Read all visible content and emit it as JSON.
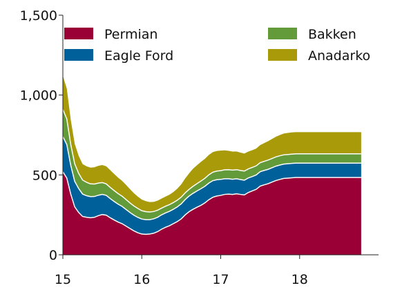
{
  "chart_data": {
    "type": "area",
    "stacked": true,
    "title": "",
    "xlabel": "",
    "ylabel": "",
    "ylim": [
      0,
      1500
    ],
    "xlim": [
      2015.0,
      2019.0
    ],
    "x_ticks": [
      2015,
      2016,
      2017,
      2018
    ],
    "x_tick_labels": [
      "15",
      "16",
      "17",
      "18"
    ],
    "y_ticks": [
      0,
      500,
      1000,
      1500
    ],
    "y_tick_labels": [
      "0",
      "500",
      "1,000",
      "1,500"
    ],
    "grid": false,
    "legend_placement": "top",
    "x": [
      2015.0,
      2015.05,
      2015.1,
      2015.15,
      2015.2,
      2015.25,
      2015.3,
      2015.35,
      2015.4,
      2015.45,
      2015.5,
      2015.55,
      2015.6,
      2015.65,
      2015.7,
      2015.75,
      2015.8,
      2015.85,
      2015.9,
      2015.95,
      2016.0,
      2016.05,
      2016.1,
      2016.15,
      2016.2,
      2016.25,
      2016.3,
      2016.35,
      2016.4,
      2016.45,
      2016.5,
      2016.55,
      2016.6,
      2016.65,
      2016.7,
      2016.75,
      2016.8,
      2016.85,
      2016.9,
      2016.95,
      2017.0,
      2017.05,
      2017.1,
      2017.15,
      2017.2,
      2017.25,
      2017.3,
      2017.35,
      2017.4,
      2017.45,
      2017.5,
      2017.55,
      2017.6,
      2017.65,
      2017.7,
      2017.75,
      2017.8,
      2017.85,
      2017.9,
      2017.95,
      2018.0,
      2018.05,
      2018.1,
      2018.15,
      2018.2,
      2018.25,
      2018.3,
      2018.35,
      2018.4,
      2018.45,
      2018.5,
      2018.55,
      2018.6,
      2018.65,
      2018.7,
      2018.75,
      2018.78
    ],
    "series": [
      {
        "name": "Permian",
        "color": "#9a0036",
        "values": [
          520,
          480,
          380,
          300,
          265,
          240,
          235,
          232,
          235,
          245,
          252,
          248,
          232,
          218,
          205,
          195,
          180,
          165,
          150,
          138,
          130,
          128,
          130,
          135,
          145,
          160,
          172,
          182,
          195,
          208,
          225,
          250,
          270,
          285,
          298,
          310,
          325,
          345,
          360,
          368,
          372,
          378,
          380,
          378,
          382,
          378,
          375,
          390,
          400,
          410,
          430,
          438,
          445,
          455,
          465,
          472,
          478,
          480,
          482,
          484,
          484,
          484,
          484,
          484,
          484,
          484,
          484,
          484,
          484,
          484,
          484,
          484,
          484,
          484,
          484,
          484,
          484
        ]
      },
      {
        "name": "Eagle Ford",
        "color": "#00609a",
        "values": [
          220,
          210,
          180,
          160,
          150,
          140,
          135,
          132,
          130,
          128,
          126,
          124,
          120,
          116,
          112,
          108,
          104,
          100,
          98,
          96,
          94,
          92,
          90,
          90,
          90,
          90,
          90,
          90,
          90,
          92,
          94,
          96,
          98,
          100,
          102,
          104,
          104,
          104,
          104,
          102,
          100,
          98,
          96,
          95,
          94,
          93,
          92,
          91,
          90,
          90,
          90,
          90,
          90,
          90,
          90,
          90,
          90,
          90,
          90,
          90,
          90,
          90,
          90,
          90,
          90,
          90,
          90,
          90,
          90,
          90,
          90,
          90,
          90,
          90,
          90,
          90,
          90
        ]
      },
      {
        "name": "Bakken",
        "color": "#649b3a",
        "values": [
          170,
          160,
          130,
          110,
          95,
          88,
          84,
          80,
          78,
          76,
          74,
          72,
          70,
          68,
          66,
          64,
          62,
          60,
          58,
          56,
          52,
          50,
          48,
          46,
          44,
          42,
          42,
          42,
          42,
          42,
          42,
          42,
          42,
          44,
          46,
          48,
          50,
          52,
          53,
          54,
          55,
          56,
          57,
          57,
          57,
          57,
          57,
          57,
          57,
          57,
          57,
          57,
          58,
          58,
          58,
          58,
          58,
          58,
          58,
          58,
          58,
          58,
          58,
          58,
          58,
          58,
          58,
          58,
          58,
          58,
          58,
          58,
          58,
          58,
          58,
          58,
          58
        ]
      },
      {
        "name": "Anadarko",
        "color": "#a89a08",
        "values": [
          210,
          190,
          155,
          125,
          110,
          100,
          100,
          102,
          105,
          108,
          110,
          110,
          108,
          104,
          100,
          96,
          92,
          86,
          80,
          74,
          70,
          66,
          62,
          60,
          60,
          60,
          60,
          62,
          66,
          72,
          80,
          90,
          100,
          110,
          115,
          120,
          122,
          124,
          126,
          126,
          125,
          122,
          118,
          116,
          114,
          112,
          110,
          108,
          108,
          108,
          110,
          114,
          118,
          122,
          126,
          130,
          133,
          135,
          136,
          136,
          136,
          136,
          136,
          136,
          136,
          136,
          136,
          136,
          136,
          136,
          136,
          136,
          136,
          136,
          136,
          136,
          136
        ]
      }
    ]
  }
}
